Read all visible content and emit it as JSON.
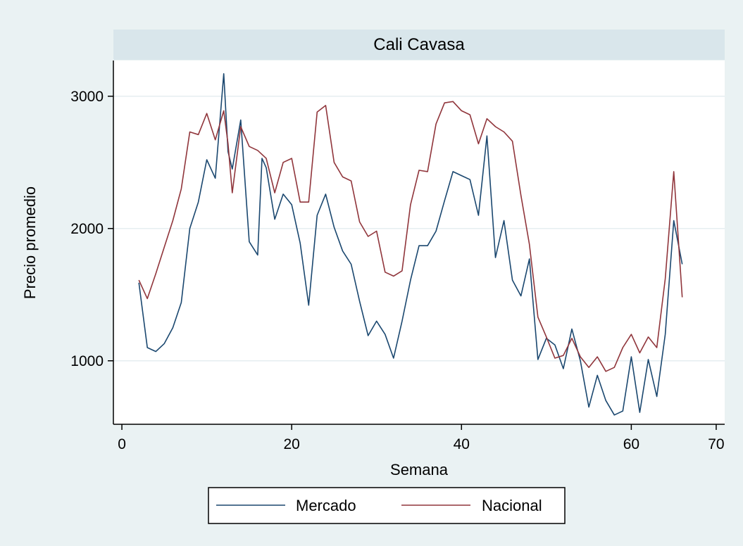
{
  "chart_data": {
    "type": "line",
    "title": "Cali Cavasa",
    "xlabel": "Semana",
    "ylabel": "Precio promedio",
    "xlim": [
      -1,
      71
    ],
    "ylim": [
      520,
      3270
    ],
    "xticks": [
      0,
      20,
      40,
      60,
      70
    ],
    "yticks": [
      1000,
      2000,
      3000
    ],
    "grid": "horizontal",
    "legend_position": "bottom",
    "colors": {
      "background": "#eaf2f3",
      "plot": "#ffffff",
      "title_bar": "#d9e6eb",
      "grid": "#e6eef0"
    },
    "series": [
      {
        "name": "Mercado",
        "color": "#1a476f",
        "x": [
          2,
          3,
          4,
          5,
          6,
          7,
          8,
          9,
          10,
          11,
          12,
          12.5,
          13,
          14,
          15,
          16,
          16.5,
          17,
          18,
          19,
          20,
          21,
          22,
          23,
          24,
          25,
          26,
          27,
          28,
          29,
          30,
          31,
          32,
          33,
          34,
          35,
          36,
          37,
          38,
          39,
          40,
          41,
          42,
          43,
          44,
          45,
          46,
          47,
          48,
          49,
          50,
          51,
          52,
          53,
          54,
          55,
          56,
          57,
          58,
          59,
          60,
          61,
          62,
          63,
          64,
          65,
          66
        ],
        "y": [
          1590,
          1100,
          1070,
          1130,
          1250,
          1440,
          2000,
          2200,
          2520,
          2380,
          3170,
          2580,
          2450,
          2820,
          1900,
          1800,
          2530,
          2460,
          2070,
          2260,
          2180,
          1890,
          1420,
          2100,
          2260,
          2010,
          1830,
          1730,
          1450,
          1190,
          1300,
          1200,
          1020,
          1300,
          1610,
          1870,
          1870,
          1980,
          2210,
          2430,
          2400,
          2370,
          2100,
          2700,
          1780,
          2060,
          1610,
          1490,
          1770,
          1010,
          1170,
          1120,
          940,
          1240,
          1000,
          650,
          890,
          700,
          590,
          620,
          1030,
          610,
          1010,
          730,
          1200,
          2060,
          1730
        ]
      },
      {
        "name": "Nacional",
        "color": "#90353b",
        "x": [
          2,
          3,
          4,
          5,
          6,
          7,
          8,
          9,
          10,
          11,
          12,
          12.5,
          13,
          14,
          15,
          16,
          17,
          18,
          19,
          20,
          21,
          22,
          23,
          24,
          25,
          26,
          27,
          28,
          29,
          30,
          31,
          32,
          33,
          34,
          35,
          36,
          37,
          38,
          39,
          40,
          41,
          42,
          43,
          44,
          45,
          46,
          47,
          48,
          49,
          50,
          51,
          52,
          53,
          54,
          55,
          56,
          57,
          58,
          59,
          60,
          61,
          62,
          63,
          64,
          65,
          66
        ],
        "y": [
          1610,
          1470,
          1660,
          1860,
          2060,
          2300,
          2730,
          2710,
          2870,
          2670,
          2890,
          2640,
          2270,
          2770,
          2620,
          2590,
          2530,
          2270,
          2500,
          2530,
          2200,
          2200,
          2880,
          2930,
          2500,
          2390,
          2360,
          2050,
          1940,
          1980,
          1670,
          1640,
          1680,
          2180,
          2440,
          2430,
          2790,
          2950,
          2960,
          2890,
          2860,
          2640,
          2830,
          2770,
          2730,
          2660,
          2250,
          1880,
          1330,
          1180,
          1020,
          1040,
          1170,
          1030,
          950,
          1030,
          920,
          950,
          1100,
          1200,
          1060,
          1180,
          1100,
          1620,
          2430,
          1480
        ]
      }
    ]
  }
}
